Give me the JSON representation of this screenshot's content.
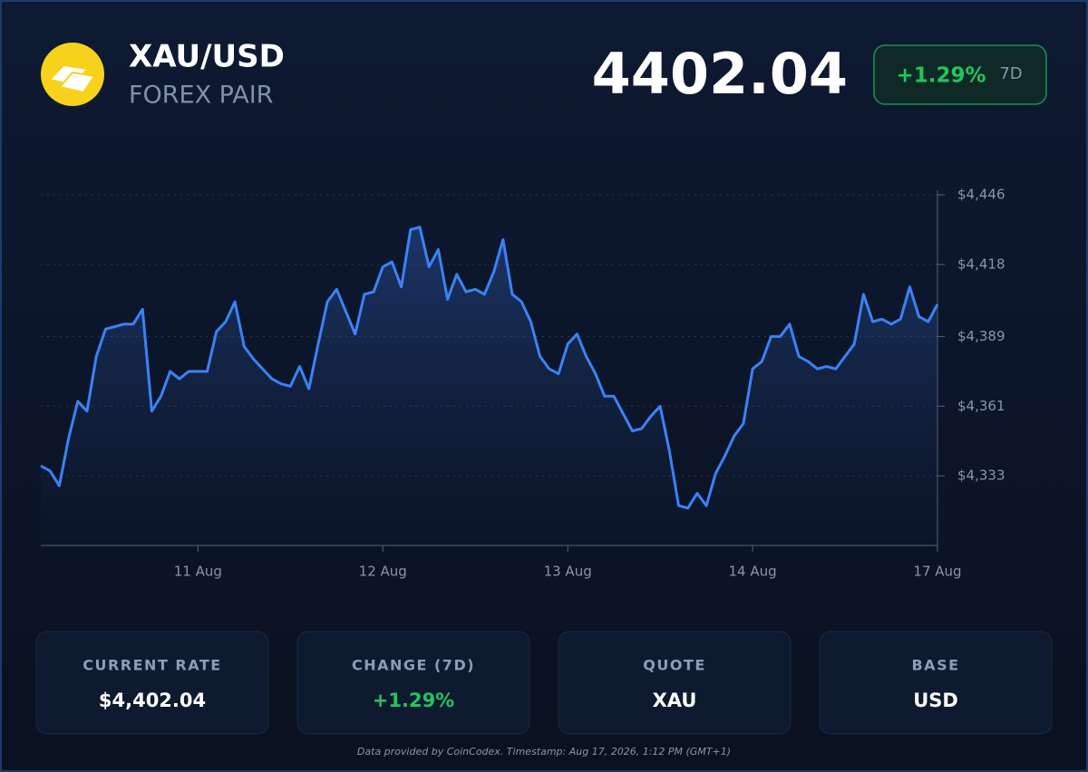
{
  "header": {
    "symbol": "XAU/USD",
    "subtitle": "FOREX PAIR",
    "price": "4402.04",
    "change": "+1.29%",
    "period": "7D"
  },
  "chart_data": {
    "type": "line",
    "color": "#3b82f6",
    "grid": true,
    "categories": [
      null,
      null,
      null,
      null,
      null,
      null,
      null,
      null,
      null,
      null,
      null,
      null,
      null,
      null,
      null,
      null,
      null,
      "11 Aug",
      null,
      null,
      null,
      null,
      null,
      null,
      null,
      null,
      null,
      null,
      null,
      null,
      null,
      null,
      null,
      null,
      null,
      null,
      null,
      "12 Aug",
      null,
      null,
      null,
      null,
      null,
      null,
      null,
      null,
      null,
      null,
      null,
      null,
      null,
      null,
      null,
      null,
      null,
      null,
      null,
      "13 Aug",
      null,
      null,
      null,
      null,
      null,
      null,
      null,
      null,
      null,
      null,
      null,
      null,
      null,
      null,
      null,
      null,
      null,
      null,
      null,
      "14 Aug",
      null,
      null,
      null,
      null,
      null,
      null,
      null,
      null,
      null,
      null,
      null,
      null,
      null,
      null,
      null,
      null,
      null,
      null,
      null,
      "17 Aug"
    ],
    "values": [
      4337,
      4335,
      4329,
      4348,
      4363,
      4359,
      4381,
      4392,
      4393,
      4394,
      4394,
      4400,
      4359,
      4365,
      4375,
      4372,
      4375,
      4375,
      4375,
      4391,
      4395,
      4403,
      4385,
      4380,
      4376,
      4372,
      4370,
      4369,
      4377,
      4368,
      4386,
      4403,
      4408,
      4399,
      4390,
      4406,
      4407,
      4417,
      4419,
      4409,
      4432,
      4433,
      4417,
      4424,
      4404,
      4414,
      4407,
      4408,
      4406,
      4415,
      4428,
      4406,
      4403,
      4395,
      4381,
      4376,
      4374,
      4386,
      4390,
      4381,
      4374,
      4365,
      4365,
      4358,
      4351,
      4352,
      4357,
      4361,
      4343,
      4321,
      4320,
      4326,
      4321,
      4334,
      4341,
      4349,
      4354,
      4376,
      4379,
      4389,
      4389,
      4394,
      4381,
      4379,
      4376,
      4377,
      4376,
      4381,
      4386,
      4406,
      4395,
      4396,
      4394,
      4396,
      4409,
      4397,
      4395,
      4402
    ],
    "ylim": [
      4305,
      4446
    ],
    "yticks": [
      {
        "value": 4333,
        "label": "$4,333"
      },
      {
        "value": 4361,
        "label": "$4,361"
      },
      {
        "value": 4389,
        "label": "$4,389"
      },
      {
        "value": 4418,
        "label": "$4,418"
      },
      {
        "value": 4446,
        "label": "$4,446"
      }
    ]
  },
  "cards": [
    {
      "label": "CURRENT RATE",
      "value": "$4,402.04"
    },
    {
      "label": "CHANGE (7D)",
      "value": "+1.29%"
    },
    {
      "label": "QUOTE",
      "value": "XAU"
    },
    {
      "label": "BASE",
      "value": "USD"
    }
  ],
  "footer": "Data provided by CoinCodex. Timestamp: Aug 17, 2026, 1:12 PM (GMT+1)"
}
